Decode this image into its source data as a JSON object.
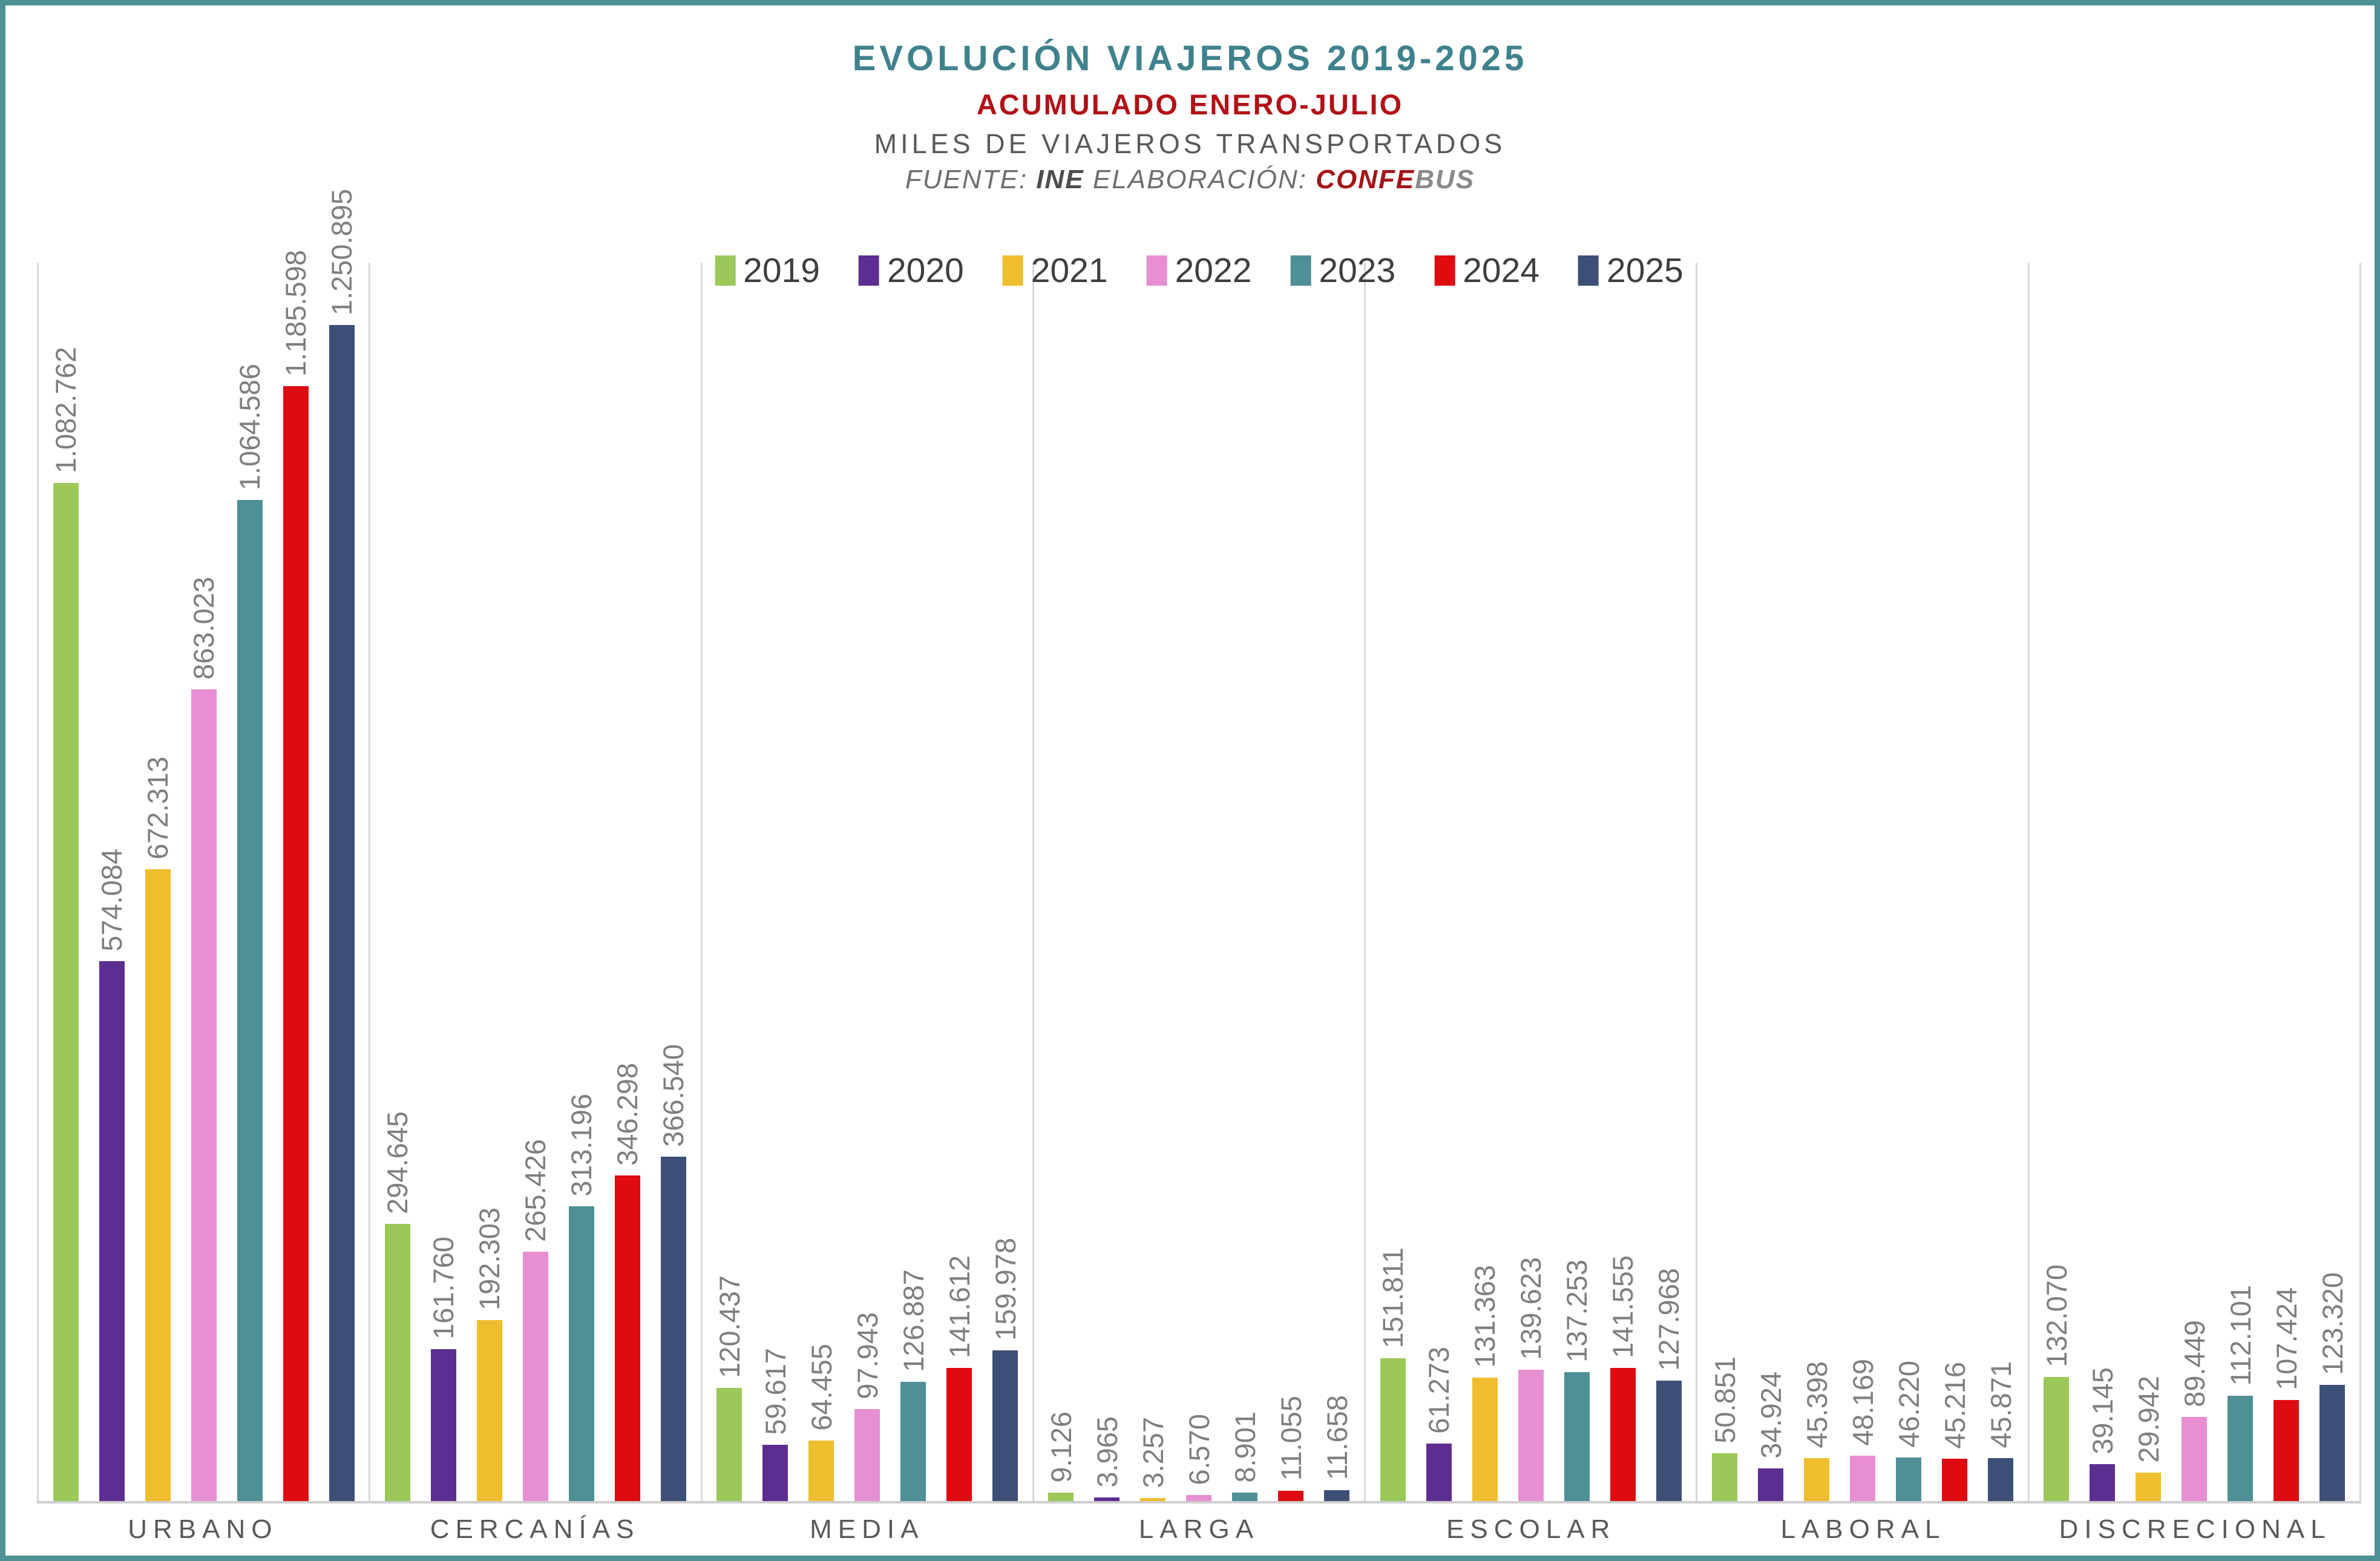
{
  "header": {
    "title": "EVOLUCIÓN VIAJEROS 2019-2025",
    "subtitle": "ACUMULADO ENERO-JULIO",
    "units_line": "MILES DE VIAJEROS TRANSPORTADOS",
    "source": {
      "fuente_label": "FUENTE: ",
      "ine": "INE",
      "elaboracion_label": " ELABORACIÓN: ",
      "confe": "CONFE",
      "bus": "BUS"
    }
  },
  "colors": {
    "frame_teal": "#4D9095",
    "title_teal": "#3F828D",
    "subtitle_red": "#B11117",
    "gridline": "#D9D9D9",
    "axis_line": "#CFCFCF",
    "data_label_gray": "#7F7F7F",
    "category_label_gray": "#595959",
    "legend_text_gray": "#3F3F3F"
  },
  "chart_data": {
    "type": "bar",
    "title": "EVOLUCIÓN VIAJEROS 2019-2025",
    "subtitle": "ACUMULADO ENERO-JULIO",
    "ylabel": "MILES DE VIAJEROS TRANSPORTADOS",
    "xlabel": "",
    "ylim": [
      0,
      1320000
    ],
    "grid": "vertical category separators only, no y-axis ticks",
    "legend_position": "top-center",
    "value_labels": "rotated 90deg above each bar, thousands separated by dots",
    "categories": [
      "URBANO",
      "CERCANÍAS",
      "MEDIA",
      "LARGA",
      "ESCOLAR",
      "LABORAL",
      "DISCRECIONAL"
    ],
    "series": [
      {
        "name": "2019",
        "color": "#9CC859",
        "values": [
          1082762,
          294645,
          120437,
          9126,
          151811,
          50851,
          132070
        ],
        "labels": [
          "1.082.762",
          "294.645",
          "120.437",
          "9.126",
          "151.811",
          "50.851",
          "132.070"
        ]
      },
      {
        "name": "2020",
        "color": "#5D2E91",
        "values": [
          574084,
          161760,
          59617,
          3965,
          61273,
          34924,
          39145
        ],
        "labels": [
          "574.084",
          "161.760",
          "59.617",
          "3.965",
          "61.273",
          "34.924",
          "39.145"
        ]
      },
      {
        "name": "2021",
        "color": "#EEBE2F",
        "values": [
          672313,
          192303,
          64455,
          3257,
          131363,
          45398,
          29942
        ],
        "labels": [
          "672.313",
          "192.303",
          "64.455",
          "3.257",
          "131.363",
          "45.398",
          "29.942"
        ]
      },
      {
        "name": "2022",
        "color": "#E78FD2",
        "values": [
          863023,
          265426,
          97943,
          6570,
          139623,
          48169,
          89449
        ],
        "labels": [
          "863.023",
          "265.426",
          "97.943",
          "6.570",
          "139.623",
          "48.169",
          "89.449"
        ]
      },
      {
        "name": "2023",
        "color": "#4F8F96",
        "values": [
          1064586,
          313196,
          126887,
          8901,
          137253,
          46220,
          112101
        ],
        "labels": [
          "1.064.586",
          "313.196",
          "126.887",
          "8.901",
          "137.253",
          "46.220",
          "112.101"
        ]
      },
      {
        "name": "2024",
        "color": "#DE0B11",
        "values": [
          1185598,
          346298,
          141612,
          11055,
          141555,
          45216,
          107424
        ],
        "labels": [
          "1.185.598",
          "346.298",
          "141.612",
          "11.055",
          "141.555",
          "45.216",
          "107.424"
        ]
      },
      {
        "name": "2025",
        "color": "#3C4F77",
        "values": [
          1250895,
          366540,
          159978,
          11658,
          127968,
          45871,
          123320
        ],
        "labels": [
          "1.250.895",
          "366.540",
          "159.978",
          "11.658",
          "127.968",
          "45.871",
          "123.320"
        ]
      }
    ]
  }
}
